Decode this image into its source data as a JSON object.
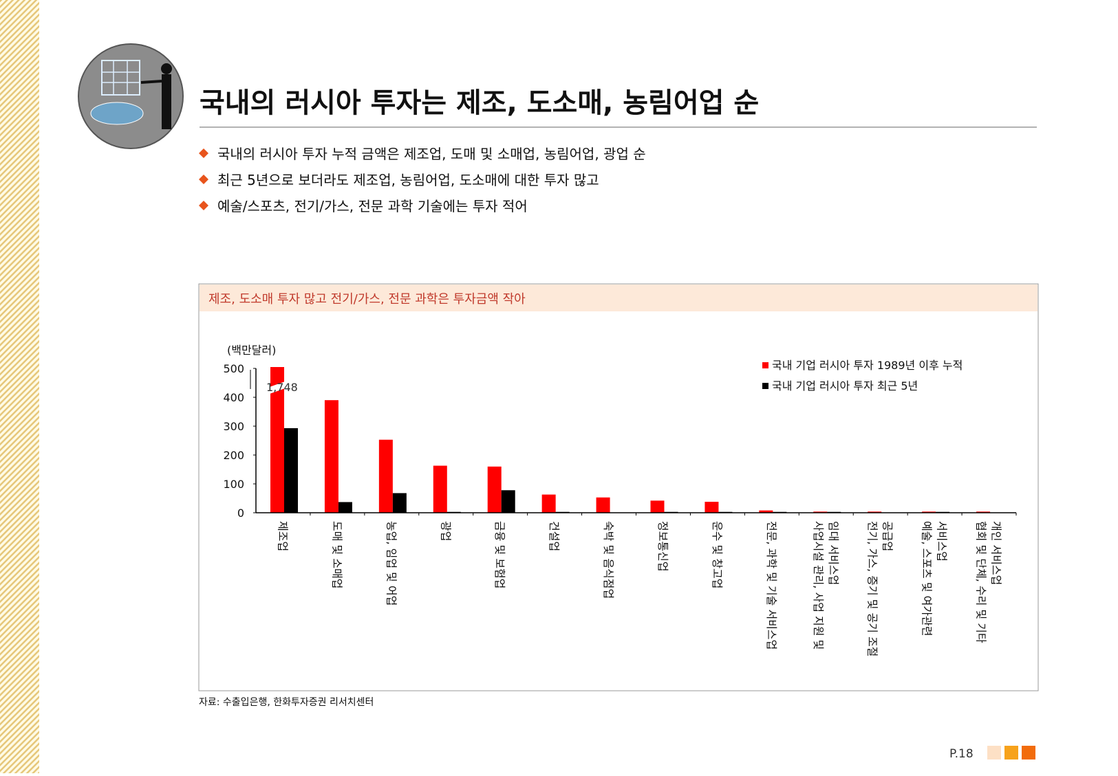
{
  "header": {
    "title": "국내의 러시아 투자는 제조, 도소매, 농림어업 순"
  },
  "bullets": [
    "국내의 러시아 투자 누적 금액은 제조업, 도매 및 소매업, 농림어업, 광업 순",
    "최근 5년으로 보더라도 제조업, 농림어업, 도소매에 대한 투자 많고",
    "예술/스포츠, 전기/가스, 전문 과학 기술에는 투자 적어"
  ],
  "chart_data": {
    "type": "bar",
    "title": "제조, 도소매 투자 많고 전기/가스, 전문 과학은 투자금액 작아",
    "y_label": "(백만달러)",
    "categories": [
      "제조업",
      "도매 및 소매업",
      "농업, 임업 및 어업",
      "광업",
      "금융 및 보험업",
      "건설업",
      "숙박 및 음식점업",
      "정보통신업",
      "운수 및 창고업",
      "전문, 과학 및 기술 서비스업",
      "사업시설 관리, 사업 지원 및\n임대 서비스업",
      "전기, 가스, 증기 및 공기 조절\n공급업",
      "예술, 스포츠 및 여가관련\n서비스업",
      "협회 및 단체, 수리 및 기타\n개인 서비스업"
    ],
    "series": [
      {
        "name": "국내 기업 러시아 투자 1989년 이후 누적",
        "color": "#ff0000",
        "values": [
          1748,
          390,
          253,
          163,
          160,
          63,
          53,
          42,
          38,
          8,
          4,
          4,
          4,
          4
        ],
        "value_labels": [
          "1,748",
          null,
          null,
          null,
          null,
          null,
          null,
          null,
          null,
          null,
          null,
          null,
          null,
          null
        ]
      },
      {
        "name": "국내 기업 러시아 투자 최근 5년",
        "color": "#000000",
        "values": [
          293,
          37,
          68,
          3,
          78,
          3,
          0,
          3,
          3,
          3,
          3,
          0,
          3,
          0
        ]
      }
    ],
    "ylim": [
      0,
      500
    ],
    "yticks": [
      0,
      100,
      200,
      300,
      400,
      500
    ],
    "legend": "upper right"
  },
  "source": "자료: 수출입은행, 한화투자증권 리서치센터",
  "page": "P.18"
}
